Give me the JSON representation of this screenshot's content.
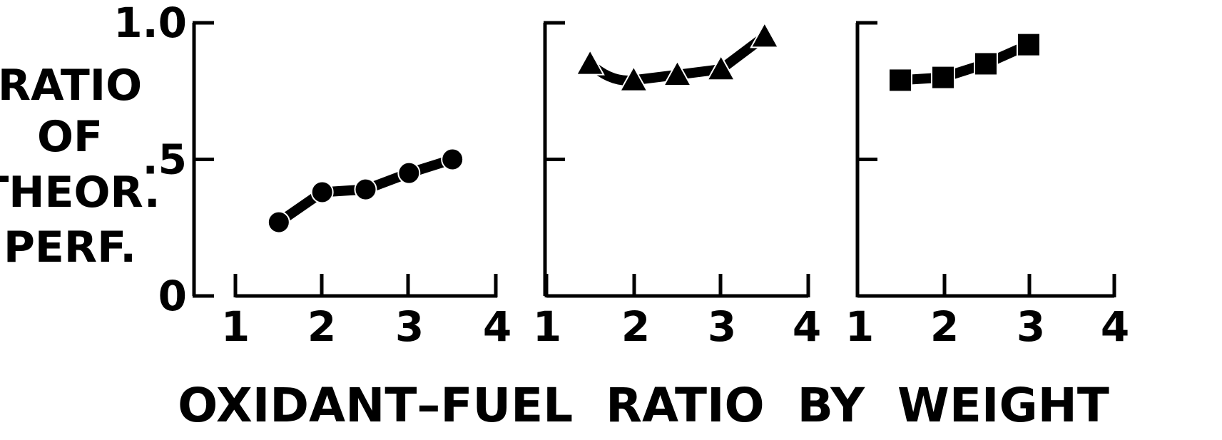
{
  "chart_data": {
    "type": "line",
    "ylabel_lines": [
      "RATIO",
      "OF",
      "THEOR.",
      "PERF."
    ],
    "xlabel": "OXIDANT–FUEL  RATIO  BY  WEIGHT",
    "ylim": [
      0,
      1.0
    ],
    "xlim": [
      1,
      4
    ],
    "y_tick_labels": [
      {
        "value": 1.0,
        "label": "1.0"
      },
      {
        "value": 0.5,
        "label": ".5"
      },
      {
        "value": 0,
        "label": "0"
      }
    ],
    "x_tick_labels": [
      "1",
      "2",
      "3",
      "4"
    ],
    "x_tick_values": [
      1,
      2,
      3,
      4
    ],
    "grid": false,
    "panels": [
      {
        "marker": "circle",
        "x": [
          1.5,
          2.0,
          2.5,
          3.0,
          3.5
        ],
        "y": [
          0.27,
          0.38,
          0.39,
          0.45,
          0.5
        ]
      },
      {
        "marker": "triangle",
        "x": [
          1.5,
          2.0,
          2.5,
          3.0,
          3.5
        ],
        "y": [
          0.85,
          0.79,
          0.81,
          0.83,
          0.95
        ]
      },
      {
        "marker": "square",
        "x": [
          1.5,
          2.0,
          2.5,
          3.0
        ],
        "y": [
          0.79,
          0.8,
          0.85,
          0.92
        ]
      }
    ]
  }
}
